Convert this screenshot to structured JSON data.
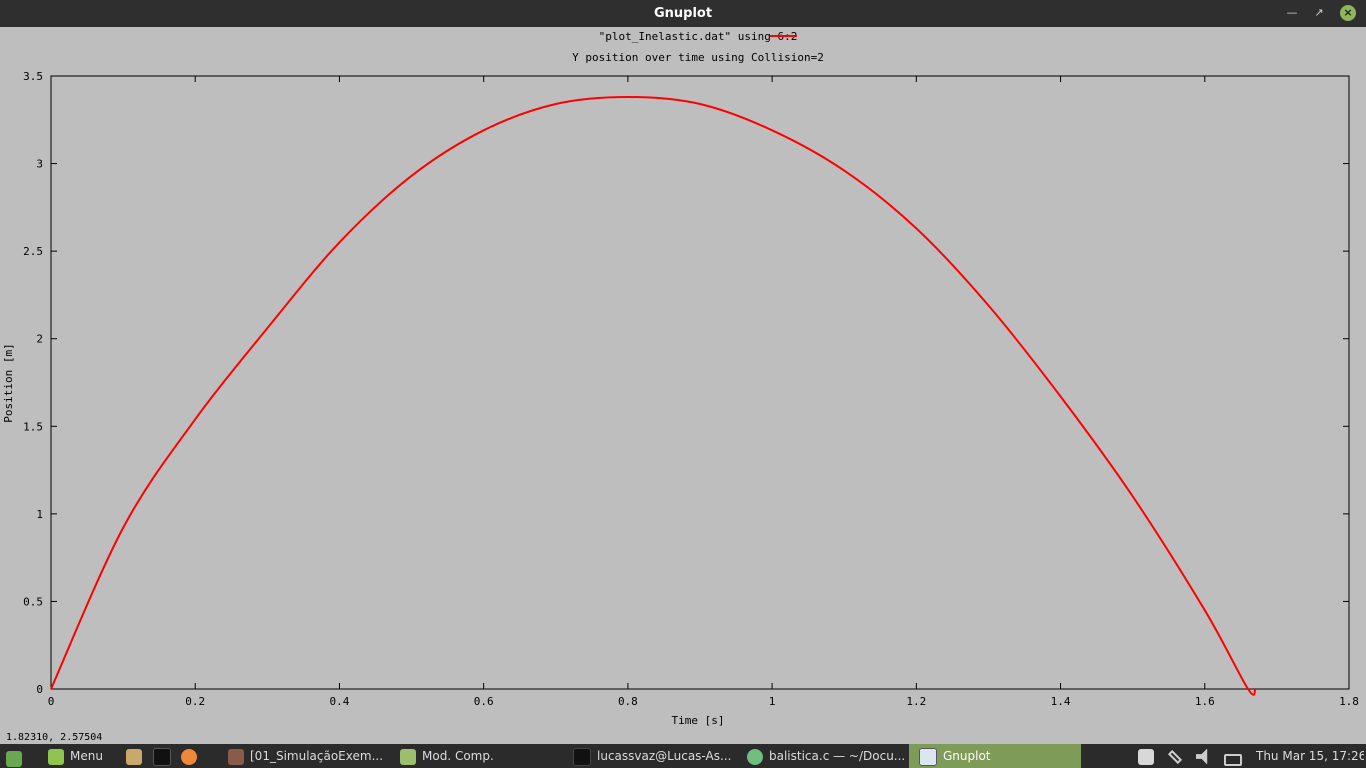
{
  "window": {
    "title": "Gnuplot"
  },
  "chart_data": {
    "type": "line",
    "title": "Y position over time using Collision=2",
    "xlabel": "Time [s]",
    "ylabel": "Position [m]",
    "xlim": [
      0,
      1.8
    ],
    "ylim": [
      0,
      3.5
    ],
    "xticks": [
      "0",
      "0.2",
      "0.4",
      "0.6",
      "0.8",
      "1",
      "1.2",
      "1.4",
      "1.6",
      "1.8"
    ],
    "yticks": [
      "0",
      "0.5",
      "1",
      "1.5",
      "2",
      "2.5",
      "3",
      "3.5"
    ],
    "grid": false,
    "legend_position": "top-center",
    "series": [
      {
        "name": "\"plot_Inelastic.dat\" using 6:2",
        "color": "#ff0000",
        "x": [
          0,
          0.1,
          0.2,
          0.3,
          0.4,
          0.5,
          0.6,
          0.7,
          0.8,
          0.9,
          1.0,
          1.1,
          1.2,
          1.3,
          1.4,
          1.5,
          1.6,
          1.66,
          1.67
        ],
        "y": [
          0,
          0.92,
          1.54,
          2.06,
          2.55,
          2.93,
          3.19,
          3.34,
          3.38,
          3.34,
          3.19,
          2.96,
          2.63,
          2.19,
          1.67,
          1.1,
          0.45,
          0,
          0
        ]
      }
    ]
  },
  "status": {
    "coords": "1.82310,  2.57504"
  },
  "taskbar": {
    "menu_label": "Menu",
    "items": [
      {
        "label": "[01_SimulaçãoExem...",
        "icon": "document-viewer-icon"
      },
      {
        "label": "Mod. Comp.",
        "icon": "folder-icon"
      },
      {
        "label": "lucassvaz@Lucas-As...",
        "icon": "terminal-icon"
      },
      {
        "label": "balistica.c — ~/Docu...",
        "icon": "editor-icon"
      },
      {
        "label": "Gnuplot",
        "icon": "window-icon",
        "active": true
      }
    ],
    "clock": "Thu Mar 15, 17:26"
  }
}
